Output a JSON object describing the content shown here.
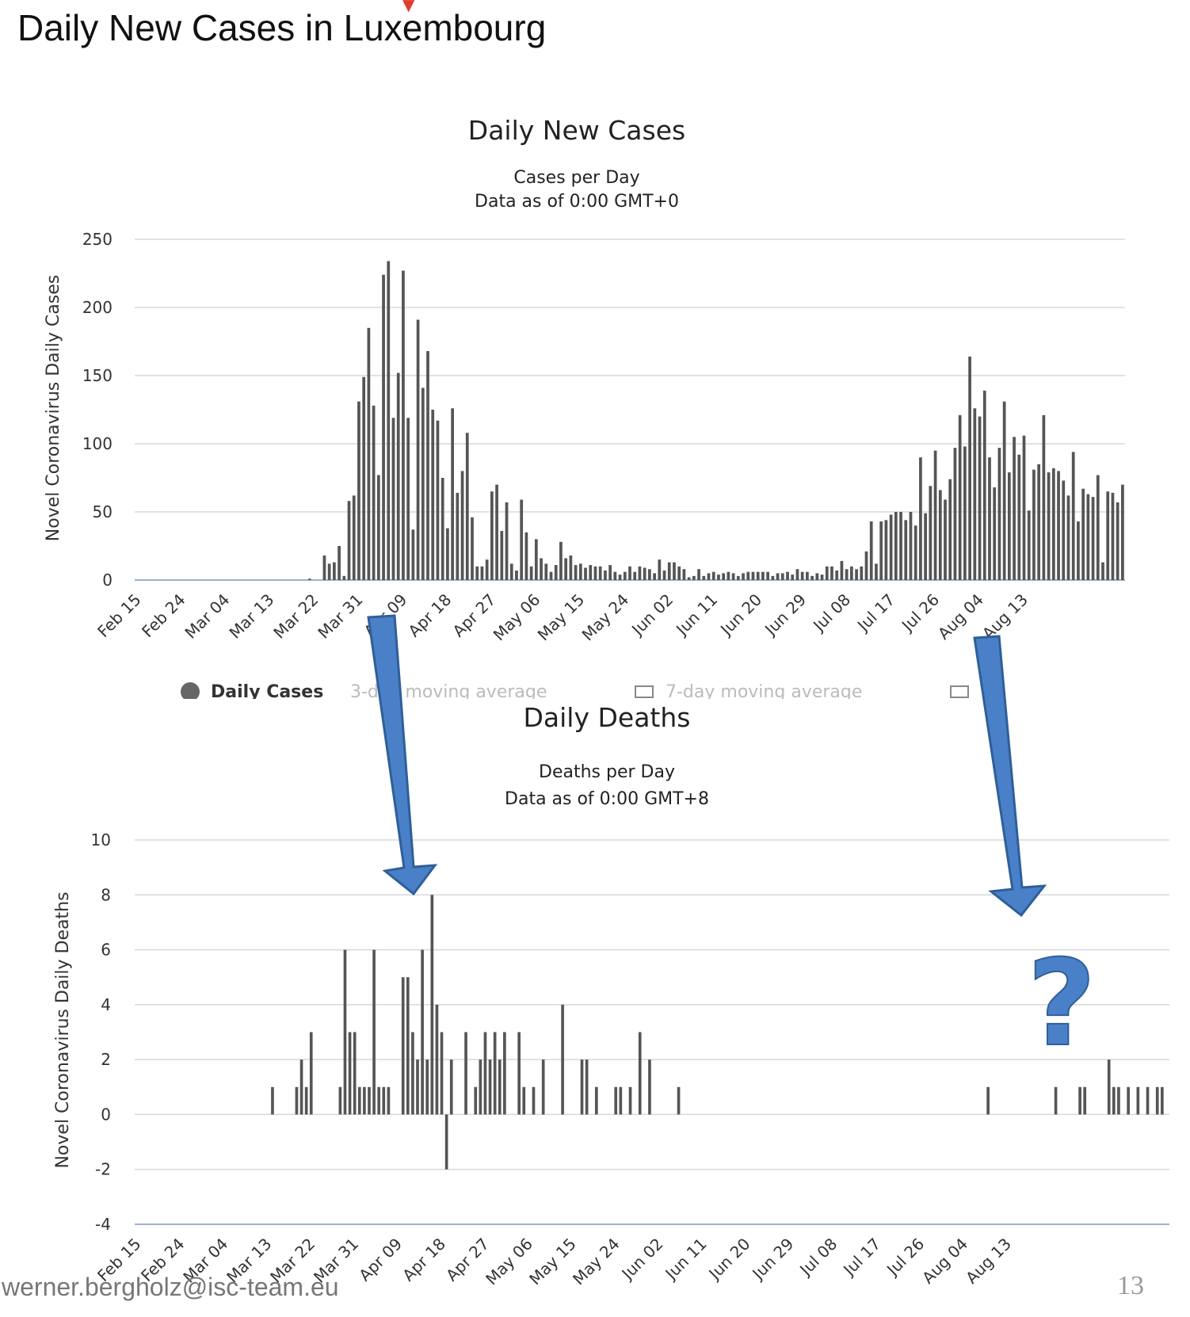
{
  "slide": {
    "title": "Daily New Cases in Luxembourg",
    "footer_email": "werner.bergholz@isc-team.eu",
    "page_number": "13",
    "question_mark": "?"
  },
  "annotations": {
    "arrow_color": "#4a80c8",
    "arrow_outline": "#2f5f99"
  },
  "chart_data": [
    {
      "type": "bar",
      "title": "Daily New Cases",
      "subtitle_lines": [
        "Cases per Day",
        "Data as of 0:00 GMT+0"
      ],
      "ylabel": "Novel Coronavirus Daily Cases",
      "ylim": [
        0,
        250
      ],
      "yticks": [
        0,
        50,
        100,
        150,
        200,
        250
      ],
      "x_tick_labels": [
        "Feb 15",
        "Feb 24",
        "Mar 04",
        "Mar 13",
        "Mar 22",
        "Mar 31",
        "Apr 09",
        "Apr 18",
        "Apr 27",
        "May 06",
        "May 15",
        "May 24",
        "Jun 02",
        "Jun 11",
        "Jun 20",
        "Jun 29",
        "Jul 08",
        "Jul 17",
        "Jul 26",
        "Aug 04",
        "Aug 13"
      ],
      "start_date": "Feb 15",
      "bar_color": "#555555",
      "grid": true,
      "legend": {
        "position": "bottom",
        "items": [
          "Daily Cases",
          "3-day moving average",
          "7-day moving average"
        ]
      },
      "values": [
        0,
        0,
        0,
        0,
        0,
        0,
        0,
        0,
        0,
        0,
        0,
        0,
        0,
        0,
        0,
        0,
        0,
        0,
        0,
        0,
        0,
        0,
        0,
        0,
        0,
        0,
        0,
        0,
        0,
        0,
        0,
        0,
        0,
        0,
        0,
        1,
        0,
        0,
        18,
        12,
        13,
        25,
        3,
        58,
        62,
        131,
        149,
        185,
        128,
        77,
        224,
        234,
        119,
        152,
        227,
        119,
        37,
        191,
        141,
        168,
        125,
        117,
        75,
        38,
        126,
        64,
        80,
        108,
        46,
        10,
        10,
        15,
        65,
        70,
        36,
        57,
        12,
        7,
        59,
        35,
        10,
        30,
        16,
        12,
        6,
        11,
        28,
        16,
        18,
        11,
        12,
        9,
        11,
        10,
        10,
        7,
        11,
        6,
        4,
        6,
        10,
        6,
        10,
        9,
        8,
        5,
        15,
        7,
        13,
        13,
        10,
        8,
        2,
        3,
        8,
        3,
        5,
        6,
        4,
        5,
        6,
        5,
        3,
        5,
        6,
        6,
        6,
        6,
        6,
        3,
        5,
        5,
        6,
        4,
        8,
        6,
        6,
        3,
        5,
        4,
        10,
        10,
        7,
        14,
        8,
        10,
        8,
        10,
        21,
        43,
        12,
        43,
        44,
        48,
        50,
        50,
        44,
        50,
        40,
        90,
        49,
        69,
        95,
        66,
        59,
        74,
        97,
        121,
        98,
        164,
        126,
        120,
        139,
        90,
        68,
        97,
        131,
        79,
        105,
        92,
        106,
        51,
        81,
        85,
        121,
        79,
        82,
        80,
        73,
        62,
        94,
        43,
        67,
        63,
        61,
        77,
        13,
        65,
        64,
        57,
        70
      ]
    },
    {
      "type": "bar",
      "title": "Daily Deaths",
      "subtitle_lines": [
        "Deaths per Day",
        "Data as of 0:00 GMT+8"
      ],
      "ylabel": "Novel Coronavirus Daily Deaths",
      "ylim": [
        -4,
        10
      ],
      "yticks": [
        -4,
        -2,
        0,
        2,
        4,
        6,
        8,
        10
      ],
      "x_tick_labels": [
        "Feb 15",
        "Feb 24",
        "Mar 04",
        "Mar 13",
        "Mar 22",
        "Mar 31",
        "Apr 09",
        "Apr 18",
        "Apr 27",
        "May 06",
        "May 15",
        "May 24",
        "Jun 02",
        "Jun 11",
        "Jun 20",
        "Jun 29",
        "Jul 08",
        "Jul 17",
        "Jul 26",
        "Aug 04",
        "Aug 13"
      ],
      "start_date": "Feb 15",
      "bar_color": "#555555",
      "grid": true,
      "values": [
        0,
        0,
        0,
        0,
        0,
        0,
        0,
        0,
        0,
        0,
        0,
        0,
        0,
        0,
        0,
        0,
        0,
        0,
        0,
        0,
        0,
        0,
        0,
        0,
        0,
        0,
        0,
        0,
        1,
        0,
        0,
        0,
        0,
        1,
        2,
        1,
        3,
        0,
        0,
        0,
        0,
        0,
        1,
        6,
        3,
        3,
        1,
        1,
        1,
        6,
        1,
        1,
        1,
        0,
        0,
        5,
        5,
        3,
        2,
        6,
        2,
        8,
        4,
        3,
        -2,
        2,
        0,
        0,
        3,
        0,
        1,
        2,
        3,
        2,
        3,
        2,
        3,
        0,
        0,
        3,
        1,
        0,
        1,
        0,
        2,
        0,
        0,
        0,
        4,
        0,
        0,
        0,
        2,
        2,
        0,
        1,
        0,
        0,
        0,
        1,
        1,
        0,
        1,
        0,
        3,
        0,
        2,
        0,
        0,
        0,
        0,
        0,
        1,
        0,
        0,
        0,
        0,
        0,
        0,
        0,
        0,
        0,
        0,
        0,
        0,
        0,
        0,
        0,
        0,
        0,
        0,
        0,
        0,
        0,
        0,
        0,
        0,
        0,
        0,
        0,
        0,
        0,
        0,
        0,
        0,
        0,
        0,
        0,
        0,
        0,
        0,
        0,
        0,
        0,
        0,
        0,
        0,
        0,
        0,
        0,
        0,
        0,
        0,
        0,
        0,
        0,
        0,
        0,
        0,
        0,
        0,
        0,
        0,
        0,
        0,
        0,
        1,
        0,
        0,
        0,
        0,
        0,
        0,
        0,
        0,
        0,
        0,
        0,
        0,
        0,
        1,
        0,
        0,
        0,
        0,
        1,
        1,
        0,
        0,
        0,
        0,
        2,
        1,
        1,
        0,
        1,
        0,
        1,
        0,
        1,
        0,
        1,
        1,
        0
      ]
    }
  ]
}
